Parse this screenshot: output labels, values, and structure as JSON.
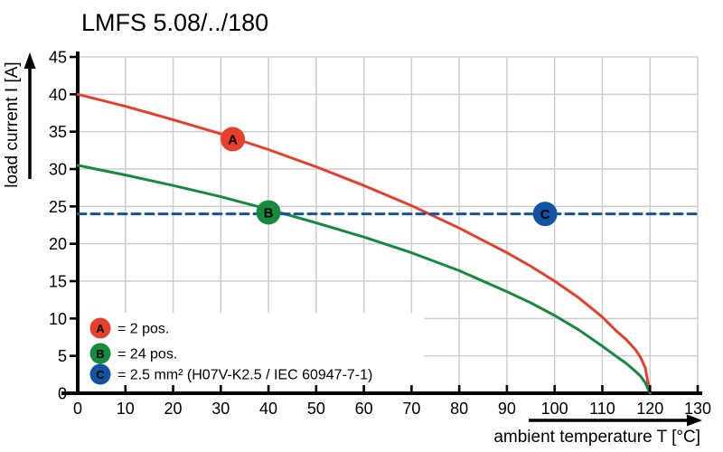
{
  "title": "LMFS 5.08/../180",
  "colors": {
    "curve_a_red": "#e6402d",
    "curve_b_green": "#188a3e",
    "limit_c_blue": "#1353a3",
    "grid": "#cdcdcd",
    "axis": "#000000",
    "background": "#ffffff"
  },
  "chart_data": {
    "type": "line",
    "title": "LMFS 5.08/../180",
    "xlabel": "ambient temperature T [°C]",
    "ylabel": "load current I [A]",
    "xlim": [
      0,
      130
    ],
    "ylim": [
      0,
      45
    ],
    "x_ticks": [
      0,
      10,
      20,
      30,
      40,
      50,
      60,
      70,
      80,
      90,
      100,
      110,
      120,
      130
    ],
    "y_ticks": [
      0,
      5,
      10,
      15,
      20,
      25,
      30,
      35,
      40,
      45
    ],
    "grid": true,
    "legend_position": "bottom-left",
    "series": [
      {
        "name": "A",
        "legend": "= 2 pos.",
        "color": "#e6402d",
        "style": "solid",
        "x": [
          0,
          10,
          20,
          30,
          40,
          50,
          60,
          70,
          80,
          90,
          95,
          100,
          105,
          110,
          113,
          115,
          117,
          118,
          119,
          120
        ],
        "y": [
          40,
          38.4,
          36.6,
          34.7,
          32.6,
          30.3,
          27.8,
          25.1,
          22.1,
          18.8,
          17,
          15,
          12.8,
          10.2,
          8.3,
          7.2,
          5.8,
          4.8,
          3.4,
          0
        ],
        "marker": {
          "letter": "A",
          "x": 32.5,
          "y": 34
        }
      },
      {
        "name": "B",
        "legend": "= 24 pos.",
        "color": "#188a3e",
        "style": "solid",
        "x": [
          0,
          10,
          20,
          30,
          40,
          50,
          60,
          70,
          80,
          90,
          95,
          100,
          105,
          110,
          113,
          115,
          117,
          118,
          119,
          120
        ],
        "y": [
          30.5,
          29.2,
          27.8,
          26.3,
          24.6,
          22.8,
          20.9,
          18.8,
          16.4,
          13.6,
          12.1,
          10.4,
          8.5,
          6.3,
          4.9,
          4,
          2.9,
          2.3,
          1.4,
          0
        ],
        "marker": {
          "letter": "B",
          "x": 40,
          "y": 24.2
        }
      },
      {
        "name": "C",
        "legend": "= 2.5 mm² (H07V-K2.5 / IEC 60947-7-1)",
        "color": "#1353a3",
        "style": "dashed",
        "x": [
          0,
          130
        ],
        "y": [
          24,
          24
        ],
        "marker": {
          "letter": "C",
          "x": 98,
          "y": 24
        }
      }
    ]
  }
}
